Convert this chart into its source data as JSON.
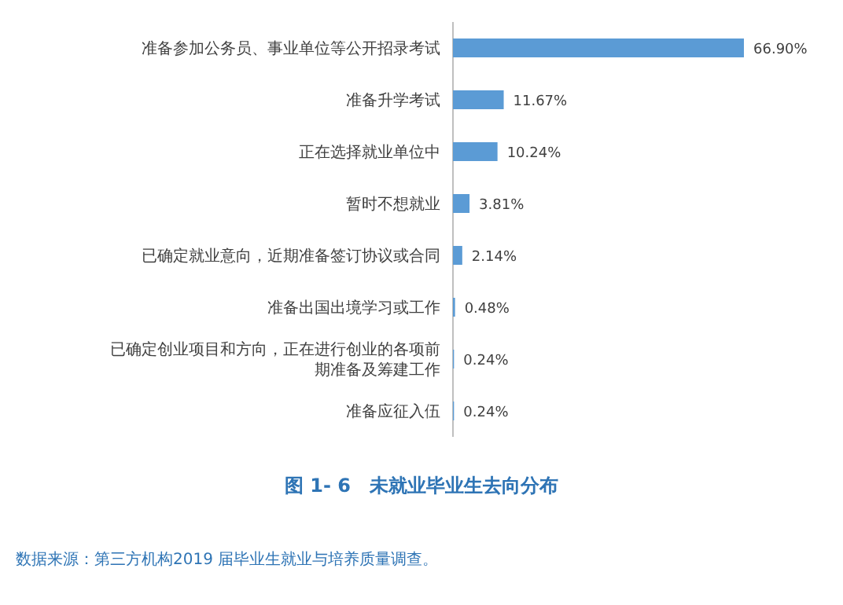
{
  "chart_data": {
    "type": "bar",
    "orientation": "horizontal",
    "title": "图 1- 6　未就业毕业生去向分布",
    "categories": [
      "准备参加公务员、事业单位等公开招录考试",
      "准备升学考试",
      "正在选择就业单位中",
      "暂时不想就业",
      "已确定就业意向，近期准备签订协议或合同",
      "准备出国出境学习或工作",
      "已确定创业项目和方向，正在进行创业的各项前期准备及筹建工作",
      "准备应征入伍"
    ],
    "values": [
      66.9,
      11.67,
      10.24,
      3.81,
      2.14,
      0.48,
      0.24,
      0.24
    ],
    "value_labels": [
      "66.90%",
      "11.67%",
      "10.24%",
      "3.81%",
      "2.14%",
      "0.48%",
      "0.24%",
      "0.24%"
    ],
    "color": "#5b9bd5",
    "annotations": [
      "数据来源：第三方机构2019 届毕业生就业与培养质量调查。"
    ]
  }
}
